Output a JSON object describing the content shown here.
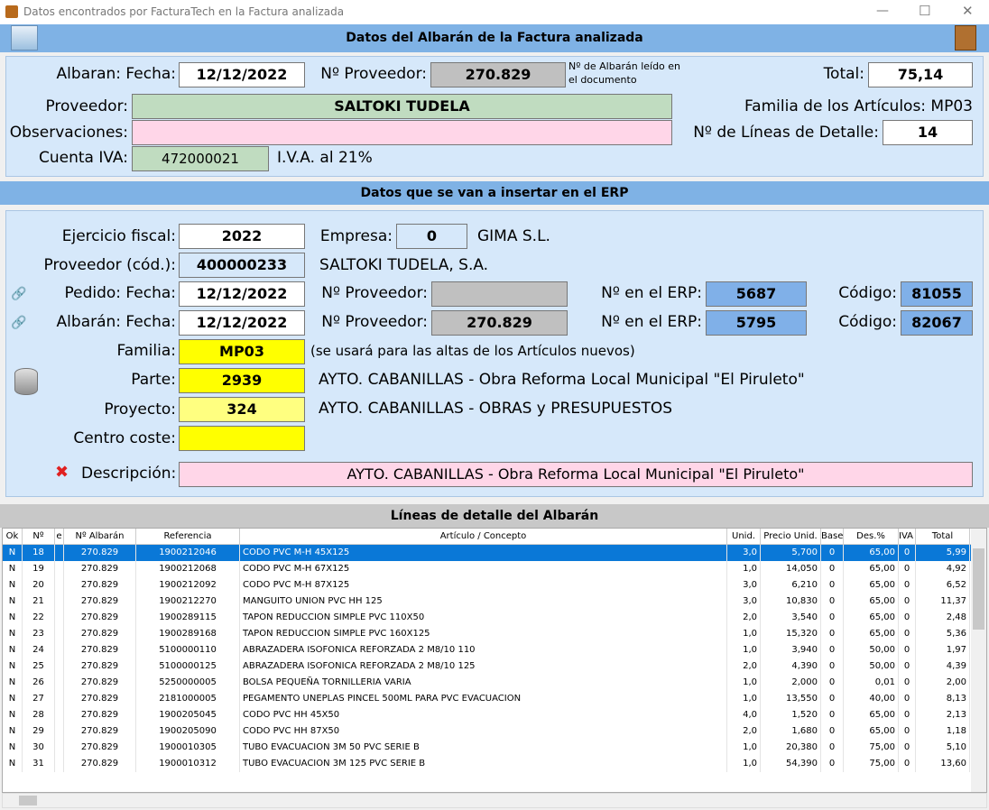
{
  "window": {
    "title": "Datos encontrados por FacturaTech en la Factura analizada",
    "minimize": "—",
    "maximize": "☐",
    "close": "✕"
  },
  "section1": {
    "title": "Datos del Albarán de la Factura analizada",
    "albaran_fecha_label": "Albaran: Fecha:",
    "albaran_fecha": "12/12/2022",
    "proveedor_num_label": "Nº Proveedor:",
    "proveedor_num": "270.829",
    "note": "Nº de Albarán leído en el documento",
    "total_label": "Total:",
    "total": "75,14",
    "proveedor_label": "Proveedor:",
    "proveedor": "SALTOKI TUDELA",
    "familia_text": "Familia de los Artículos: MP03",
    "observaciones_label": "Observaciones:",
    "observaciones": "",
    "lineas_label": "Nº de Líneas de Detalle:",
    "lineas": "14",
    "cuenta_iva_label": "Cuenta IVA:",
    "cuenta_iva": "472000021",
    "iva_text": "I.V.A. al 21%"
  },
  "section2": {
    "title": "Datos que se van a insertar en el ERP",
    "ejercicio_label": "Ejercicio fiscal:",
    "ejercicio": "2022",
    "empresa_label": "Empresa:",
    "empresa": "0",
    "empresa_name": "GIMA S.L.",
    "proveedor_cod_label": "Proveedor (cód.):",
    "proveedor_cod": "400000233",
    "proveedor_name": "SALTOKI TUDELA, S.A.",
    "pedido_label": "Pedido: Fecha:",
    "pedido_fecha": "12/12/2022",
    "pedido_prov_label": "Nº Proveedor:",
    "pedido_prov": "",
    "pedido_erp_label": "Nº en el ERP:",
    "pedido_erp": "5687",
    "pedido_codigo_label": "Código:",
    "pedido_codigo": "81055",
    "albaran_label": "Albarán: Fecha:",
    "albaran_fecha": "12/12/2022",
    "albaran_prov_label": "Nº Proveedor:",
    "albaran_prov": "270.829",
    "albaran_erp_label": "Nº en el ERP:",
    "albaran_erp": "5795",
    "albaran_codigo_label": "Código:",
    "albaran_codigo": "82067",
    "familia_label": "Familia:",
    "familia": "MP03",
    "familia_note": "(se usará para las altas de los Artículos nuevos)",
    "parte_label": "Parte:",
    "parte": "2939",
    "parte_name": "AYTO. CABANILLAS - Obra Reforma Local Municipal \"El Piruleto\"",
    "proyecto_label": "Proyecto:",
    "proyecto": "324",
    "proyecto_name": "AYTO. CABANILLAS - OBRAS y PRESUPUESTOS",
    "centro_label": "Centro coste:",
    "centro": "",
    "descripcion_label": "Descripción:",
    "descripcion": "AYTO. CABANILLAS - Obra Reforma Local Municipal \"El Piruleto\""
  },
  "section3": {
    "title": "Líneas de detalle del Albarán",
    "columns": [
      "Ok",
      "Nº",
      "e",
      "Nº Albarán",
      "Referencia",
      "Artículo / Concepto",
      "Unid.",
      "Precio Unid.",
      "Base",
      "Des.%",
      "IVA %",
      "Total"
    ],
    "rows": [
      [
        "N",
        "18",
        "",
        "270.829",
        "1900212046",
        "CODO PVC M-H 45X125",
        "3,0",
        "5,700",
        "0",
        "65,00",
        "0",
        "5,99"
      ],
      [
        "N",
        "19",
        "",
        "270.829",
        "1900212068",
        "CODO PVC M-H 67X125",
        "1,0",
        "14,050",
        "0",
        "65,00",
        "0",
        "4,92"
      ],
      [
        "N",
        "20",
        "",
        "270.829",
        "1900212092",
        "CODO PVC M-H 87X125",
        "3,0",
        "6,210",
        "0",
        "65,00",
        "0",
        "6,52"
      ],
      [
        "N",
        "21",
        "",
        "270.829",
        "1900212270",
        "MANGUITO UNION PVC HH 125",
        "3,0",
        "10,830",
        "0",
        "65,00",
        "0",
        "11,37"
      ],
      [
        "N",
        "22",
        "",
        "270.829",
        "1900289115",
        "TAPON REDUCCION SIMPLE PVC 110X50",
        "2,0",
        "3,540",
        "0",
        "65,00",
        "0",
        "2,48"
      ],
      [
        "N",
        "23",
        "",
        "270.829",
        "1900289168",
        "TAPON REDUCCION SIMPLE PVC 160X125",
        "1,0",
        "15,320",
        "0",
        "65,00",
        "0",
        "5,36"
      ],
      [
        "N",
        "24",
        "",
        "270.829",
        "5100000110",
        "ABRAZADERA ISOFONICA REFORZADA 2 M8/10 110",
        "1,0",
        "3,940",
        "0",
        "50,00",
        "0",
        "1,97"
      ],
      [
        "N",
        "25",
        "",
        "270.829",
        "5100000125",
        "ABRAZADERA ISOFONICA REFORZADA 2 M8/10 125",
        "2,0",
        "4,390",
        "0",
        "50,00",
        "0",
        "4,39"
      ],
      [
        "N",
        "26",
        "",
        "270.829",
        "5250000005",
        "BOLSA PEQUEÑA TORNILLERIA VARIA",
        "1,0",
        "2,000",
        "0",
        "0,01",
        "0",
        "2,00"
      ],
      [
        "N",
        "27",
        "",
        "270.829",
        "2181000005",
        "PEGAMENTO UNEPLAS PINCEL 500ML PARA PVC EVACUACION",
        "1,0",
        "13,550",
        "0",
        "40,00",
        "0",
        "8,13"
      ],
      [
        "N",
        "28",
        "",
        "270.829",
        "1900205045",
        "CODO PVC HH 45X50",
        "4,0",
        "1,520",
        "0",
        "65,00",
        "0",
        "2,13"
      ],
      [
        "N",
        "29",
        "",
        "270.829",
        "1900205090",
        "CODO PVC HH 87X50",
        "2,0",
        "1,680",
        "0",
        "65,00",
        "0",
        "1,18"
      ],
      [
        "N",
        "30",
        "",
        "270.829",
        "1900010305",
        "TUBO EVACUACION 3M 50 PVC SERIE B",
        "1,0",
        "20,380",
        "0",
        "75,00",
        "0",
        "5,10"
      ],
      [
        "N",
        "31",
        "",
        "270.829",
        "1900010312",
        "TUBO EVACUACION 3M 125 PVC SERIE B",
        "1,0",
        "54,390",
        "0",
        "75,00",
        "0",
        "13,60"
      ]
    ],
    "selected_row": 0
  }
}
